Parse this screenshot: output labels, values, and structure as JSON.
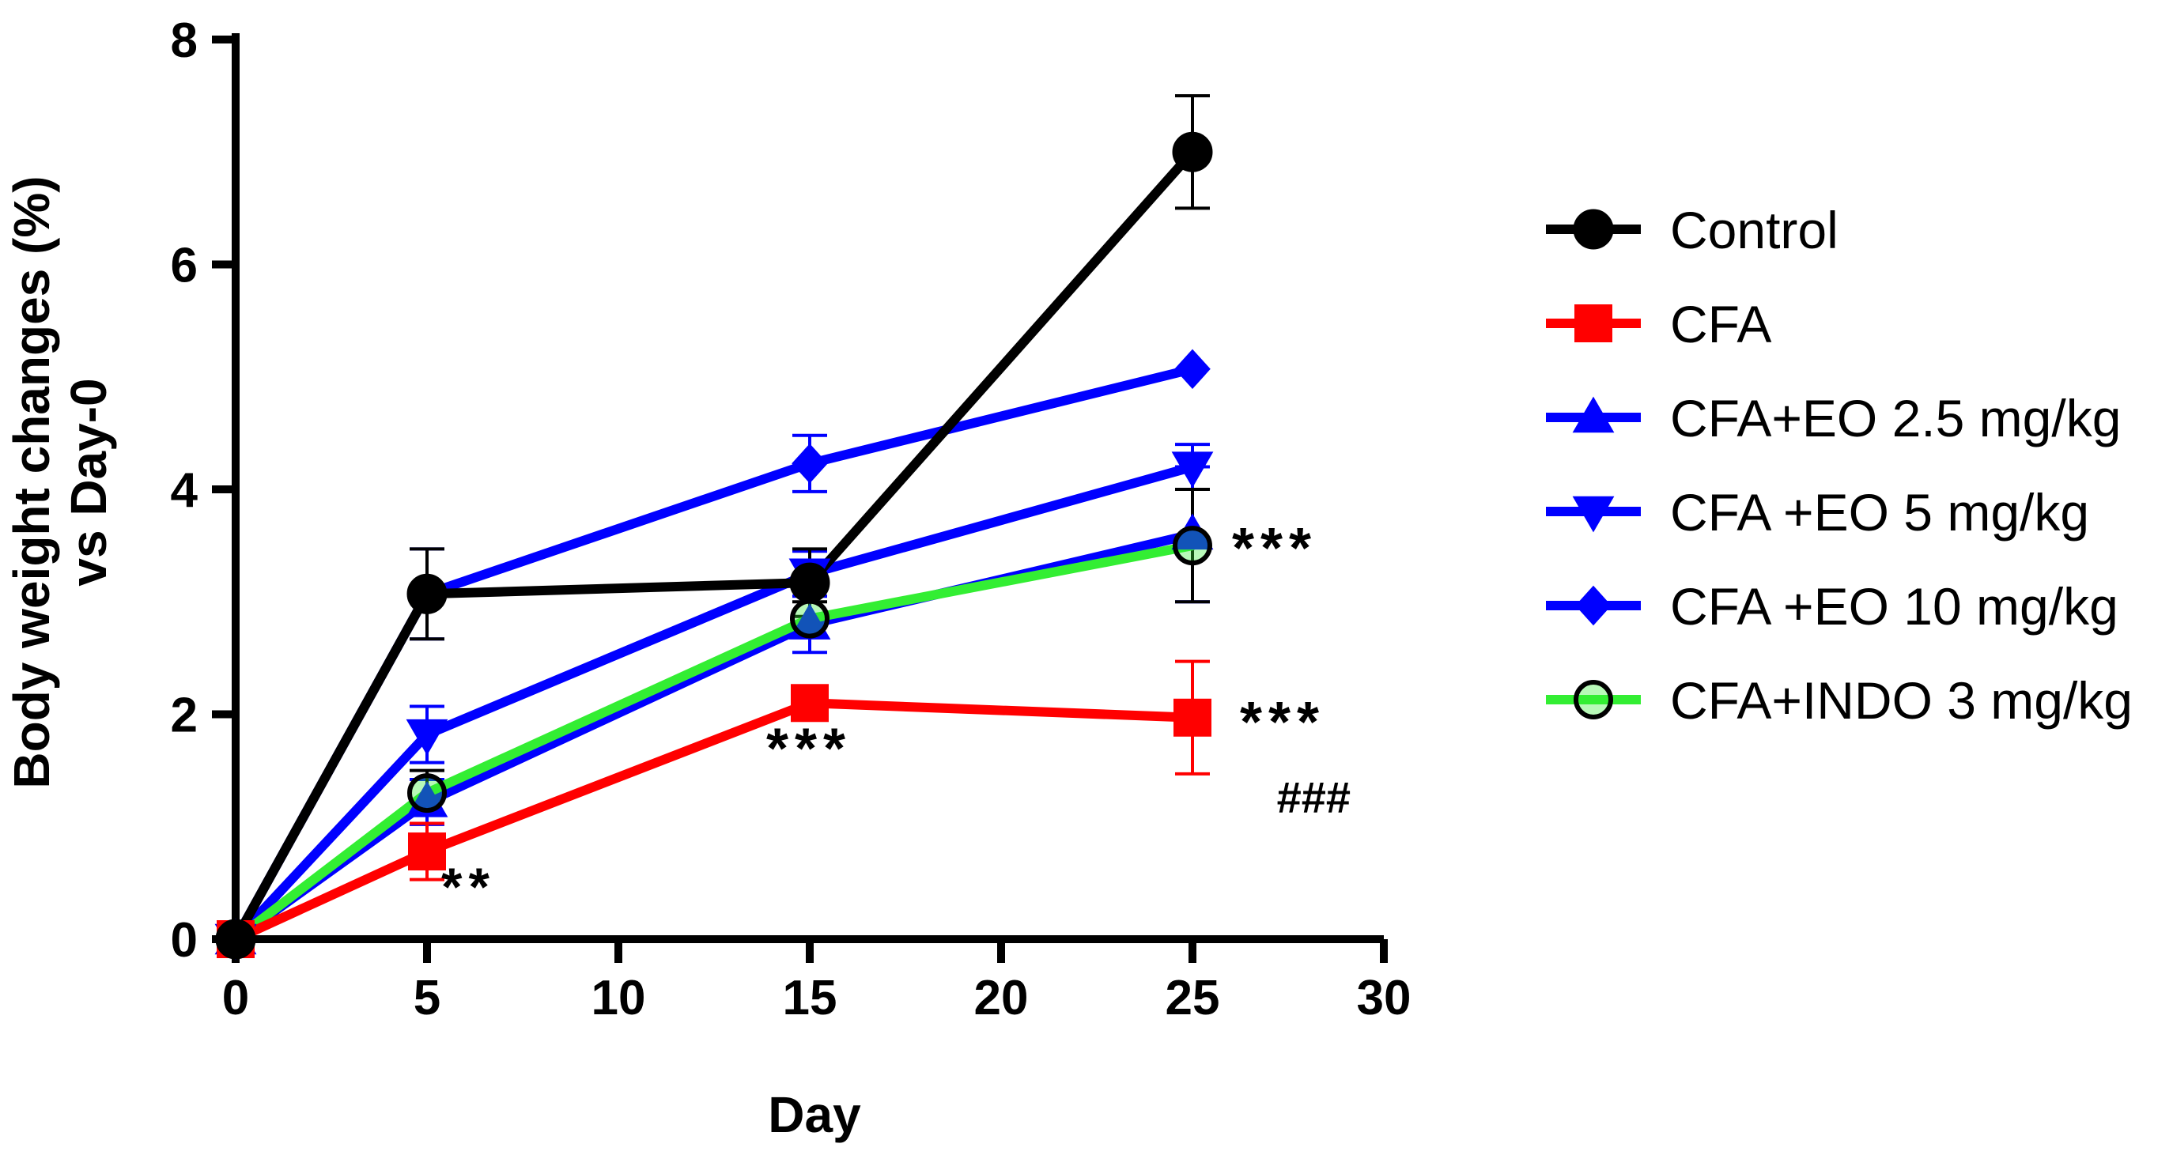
{
  "chart_data": {
    "type": "line",
    "title": "",
    "xlabel": "Day",
    "ylabel_lines": [
      "Body weight changes (%)",
      "vs Day-0"
    ],
    "xlim": [
      0,
      30
    ],
    "ylim": [
      0,
      8
    ],
    "xticks": [
      0,
      5,
      10,
      15,
      20,
      25,
      30
    ],
    "yticks": [
      0,
      2,
      4,
      6,
      8
    ],
    "grid": false,
    "legend_position": "right",
    "x": [
      0,
      5,
      15,
      25
    ],
    "series": [
      {
        "name": "Control",
        "color": "#000000",
        "marker": "circle",
        "values": [
          0,
          3.07,
          3.17,
          7.0
        ],
        "errors": [
          0,
          0.4,
          0.3,
          0.5
        ]
      },
      {
        "name": "CFA",
        "color": "#ff0000",
        "marker": "square",
        "values": [
          0,
          0.78,
          2.1,
          1.97
        ],
        "errors": [
          0,
          0.25,
          0.1,
          0.5
        ]
      },
      {
        "name": "CFA+EO 2.5 mg/kg",
        "color": "#0000ff",
        "marker": "triangle-up",
        "values": [
          0,
          1.22,
          2.8,
          3.6
        ],
        "errors": [
          0,
          0.2,
          0.25,
          0.6
        ]
      },
      {
        "name": "CFA +EO 5 mg/kg",
        "color": "#0000ff",
        "marker": "triangle-down",
        "values": [
          0,
          1.82,
          3.25,
          4.2
        ],
        "errors": [
          0,
          0.25,
          0.2,
          0.2
        ]
      },
      {
        "name": "CFA +EO 10 mg/kg",
        "color": "#0000ff",
        "marker": "diamond",
        "values": [
          0,
          3.07,
          4.23,
          5.07
        ],
        "errors": [
          0,
          0.4,
          0.25,
          0
        ]
      },
      {
        "name": "CFA+INDO 3 mg/kg",
        "color": "#33ee33",
        "marker": "circle-open",
        "values": [
          0,
          1.3,
          2.85,
          3.5
        ],
        "errors": [
          0,
          0.2,
          0.15,
          0.5
        ]
      }
    ],
    "annotations": [
      {
        "text": "**",
        "x": 5,
        "y": 0.78,
        "note": "CFA"
      },
      {
        "text": "***",
        "x": 15,
        "y": 2.1,
        "note": "CFA"
      },
      {
        "text": "***",
        "x": 25,
        "y": 1.97,
        "note": "CFA"
      },
      {
        "text": "###",
        "x": 25,
        "y": 1.97,
        "note": "CFA"
      },
      {
        "text": "***",
        "x": 25,
        "y": 3.5,
        "note": "CFA+INDO"
      }
    ]
  }
}
